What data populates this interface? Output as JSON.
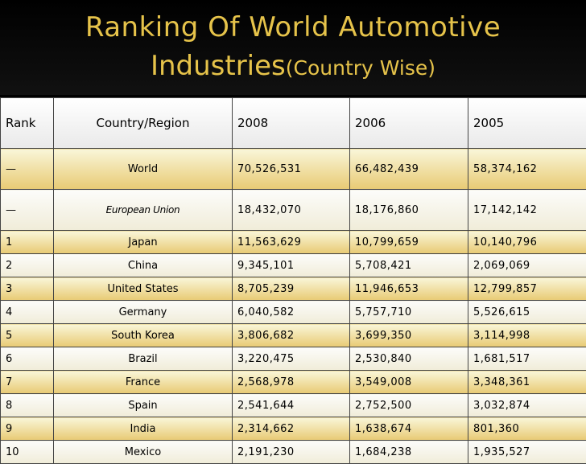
{
  "title": {
    "line1": "Ranking Of World Automotive",
    "line2_main": "Industries",
    "line2_small": "(Country Wise)"
  },
  "table": {
    "headers": [
      "Rank",
      "Country/Region",
      "2008",
      "2006",
      "2005"
    ],
    "rows": [
      {
        "rank": "—",
        "country": "World",
        "y2008": "70,526,531",
        "y2006": "66,482,439",
        "y2005": "58,374,162"
      },
      {
        "rank": "—",
        "country": "European Union",
        "y2008": "18,432,070",
        "y2006": "18,176,860",
        "y2005": "17,142,142"
      },
      {
        "rank": "1",
        "country": "Japan",
        "y2008": "11,563,629",
        "y2006": "10,799,659",
        "y2005": "10,140,796"
      },
      {
        "rank": "2",
        "country": "China",
        "y2008": "9,345,101",
        "y2006": "5,708,421",
        "y2005": "2,069,069"
      },
      {
        "rank": "3",
        "country": "United States",
        "y2008": "8,705,239",
        "y2006": "11,946,653",
        "y2005": "12,799,857"
      },
      {
        "rank": "4",
        "country": "Germany",
        "y2008": "6,040,582",
        "y2006": "5,757,710",
        "y2005": "5,526,615"
      },
      {
        "rank": "5",
        "country": "South Korea",
        "y2008": "3,806,682",
        "y2006": "3,699,350",
        "y2005": "3,114,998"
      },
      {
        "rank": "6",
        "country": "Brazil",
        "y2008": "3,220,475",
        "y2006": "2,530,840",
        "y2005": "1,681,517"
      },
      {
        "rank": "7",
        "country": "France",
        "y2008": "2,568,978",
        "y2006": "3,549,008",
        "y2005": "3,348,361"
      },
      {
        "rank": "8",
        "country": "Spain",
        "y2008": "2,541,644",
        "y2006": "2,752,500",
        "y2005": "3,032,874"
      },
      {
        "rank": "9",
        "country": "India",
        "y2008": "2,314,662",
        "y2006": "1,638,674",
        "y2005": "801,360"
      },
      {
        "rank": "10",
        "country": "Mexico",
        "y2008": "2,191,230",
        "y2006": "1,684,238",
        "y2005": "1,935,527"
      }
    ]
  }
}
